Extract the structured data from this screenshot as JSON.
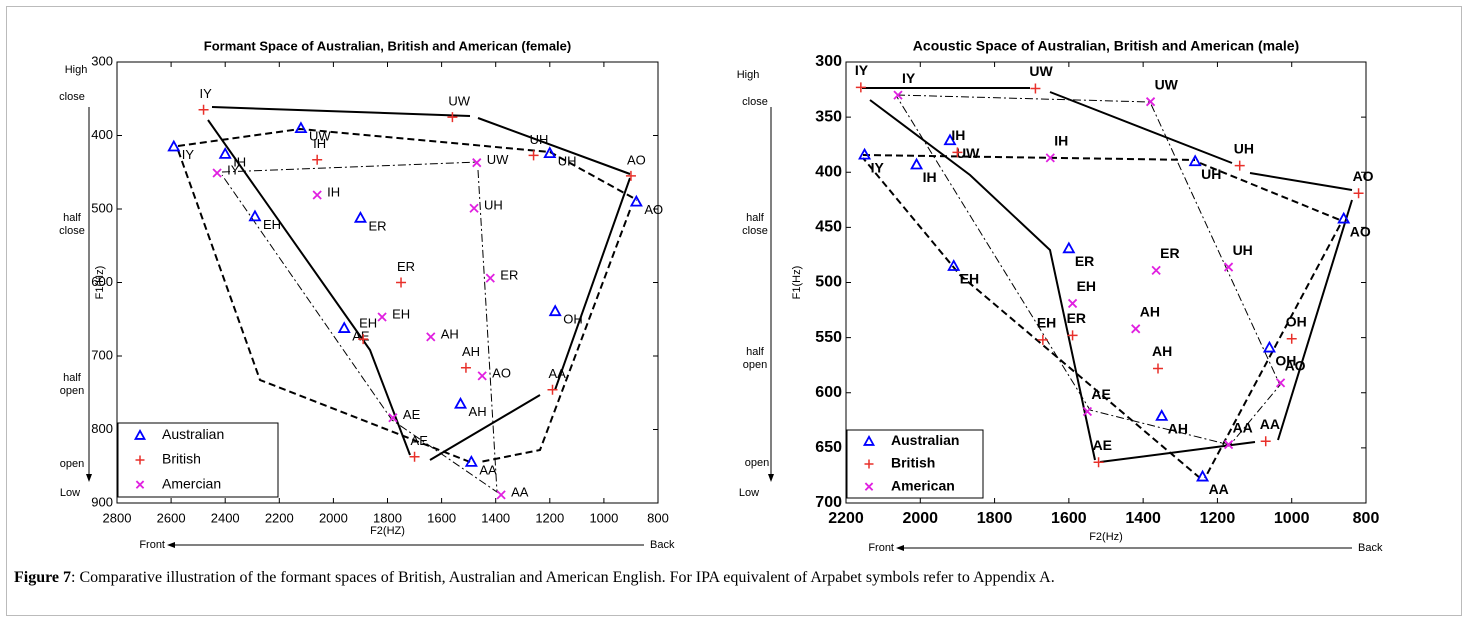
{
  "chart_data": [
    {
      "type": "scatter",
      "title": "Formant Space of Australian, British and American (female)",
      "xlabel": "F2(HZ)",
      "ylabel": "F1(Hz)",
      "xlim": [
        2800,
        800
      ],
      "xticks": [
        2800,
        2600,
        2400,
        2200,
        2000,
        1800,
        1600,
        1400,
        1200,
        1000,
        800
      ],
      "ylim": [
        900,
        300
      ],
      "yticks": [
        300,
        400,
        500,
        600,
        700,
        800,
        900
      ],
      "legend": "lower left",
      "x_direction_labels": [
        "Front",
        "Back"
      ],
      "y_side_labels": [
        "High",
        "close",
        "half close",
        "half open",
        "open",
        "Low"
      ],
      "series": [
        {
          "name": "Australian",
          "color": "#0000ff",
          "marker": "triangle",
          "labels": [
            "IY",
            "UW",
            "IH",
            "UH",
            "AO",
            "EH",
            "ER",
            "AE",
            "OH",
            "AH",
            "AA"
          ],
          "x": [
            2590,
            2120,
            2400,
            1200,
            880,
            2290,
            1900,
            1960,
            1180,
            1530,
            1490
          ],
          "values": [
            415,
            390,
            425,
            424,
            490,
            510,
            512,
            662,
            639,
            765,
            844
          ]
        },
        {
          "name": "British",
          "color": "#e8302a",
          "marker": "plus",
          "labels": [
            "IY",
            "UW",
            "IH",
            "UH",
            "AO",
            "ER",
            "EH",
            "AH",
            "AA",
            "AE"
          ],
          "x": [
            2480,
            1560,
            2060,
            1260,
            900,
            1750,
            1890,
            1510,
            1190,
            1700
          ],
          "values": [
            365,
            375,
            433,
            427,
            455,
            600,
            677,
            716,
            746,
            837
          ]
        },
        {
          "name": "Amercian",
          "color": "#e020e0",
          "marker": "x",
          "labels": [
            "IY",
            "IH",
            "UW",
            "UH",
            "ER",
            "EH",
            "AH",
            "AO",
            "AE",
            "AA"
          ],
          "x": [
            2430,
            2060,
            1470,
            1480,
            1420,
            1820,
            1640,
            1450,
            1780,
            1380
          ],
          "values": [
            451,
            481,
            437,
            499,
            594,
            647,
            674,
            727,
            784,
            889
          ]
        }
      ]
    },
    {
      "type": "scatter",
      "title": "Acoustic Space of Australian, British and American (male)",
      "xlabel": "F2(Hz)",
      "ylabel": "F1(Hz)",
      "xlim": [
        2200,
        800
      ],
      "xticks": [
        2200,
        2000,
        1800,
        1600,
        1400,
        1200,
        1000,
        800
      ],
      "ylim": [
        700,
        300
      ],
      "yticks": [
        300,
        350,
        400,
        450,
        500,
        550,
        600,
        650,
        700
      ],
      "legend": "lower left",
      "x_direction_labels": [
        "Front",
        "Back"
      ],
      "y_side_labels": [
        "High",
        "close",
        "half close",
        "half open",
        "open",
        "Low"
      ],
      "series": [
        {
          "name": "Australian",
          "color": "#0000ff",
          "marker": "triangle",
          "labels": [
            "IY",
            "IH",
            "UW",
            "UH",
            "AO",
            "ER",
            "EH",
            "OH",
            "AH",
            "AA"
          ],
          "x": [
            2150,
            2010,
            1920,
            1260,
            860,
            1600,
            1910,
            1060,
            1350,
            1240
          ],
          "values": [
            384,
            393,
            371,
            390,
            442,
            469,
            485,
            559,
            621,
            676
          ]
        },
        {
          "name": "British",
          "color": "#e8302a",
          "marker": "plus",
          "labels": [
            "IY",
            "UW",
            "IH",
            "UH",
            "AO",
            "OH",
            "EH",
            "ER",
            "AH",
            "AA",
            "AE"
          ],
          "x": [
            2160,
            1690,
            1900,
            1140,
            820,
            1000,
            1670,
            1590,
            1360,
            1070,
            1520
          ],
          "values": [
            323,
            324,
            382,
            394,
            419,
            551,
            552,
            548,
            578,
            644,
            663
          ]
        },
        {
          "name": "American",
          "color": "#e020e0",
          "marker": "x",
          "labels": [
            "IY",
            "UW",
            "IH",
            "ER",
            "UH",
            "EH",
            "AH",
            "AO",
            "AE",
            "AA"
          ],
          "x": [
            2060,
            1380,
            1650,
            1365,
            1170,
            1590,
            1420,
            1030,
            1550,
            1170
          ],
          "values": [
            330,
            336,
            387,
            489,
            486,
            519,
            542,
            591,
            617,
            647
          ]
        }
      ]
    }
  ],
  "caption": {
    "label": "Figure 7",
    "text": ": Comparative illustration of the formant spaces of British, Australian and American English. For IPA equivalent of Arpabet symbols refer to Appendix A."
  }
}
